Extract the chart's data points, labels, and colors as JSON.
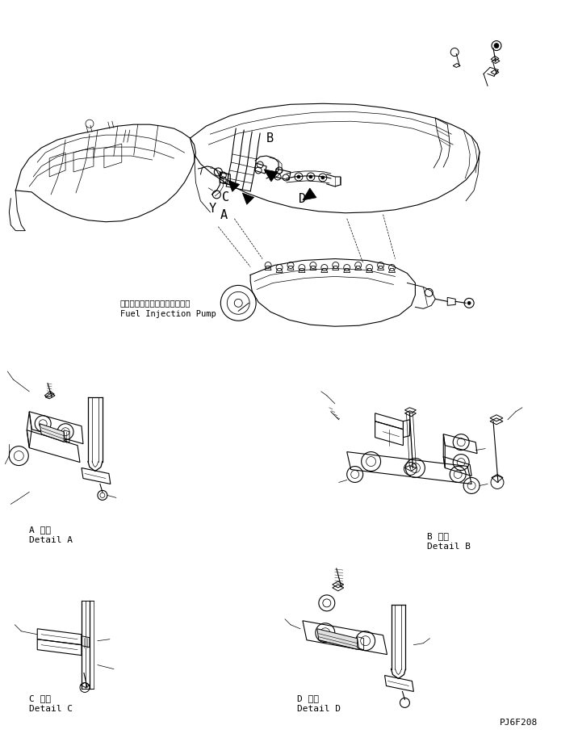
{
  "background_color": "#ffffff",
  "line_color": "#000000",
  "figure_width": 7.16,
  "figure_height": 9.19,
  "dpi": 100,
  "labels": {
    "fuel_injection_jp": "フェルインジェクションポンプ",
    "fuel_injection_en": "Fuel Injection Pump",
    "detail_a_jp": "A 詳細",
    "detail_a_en": "Detail A",
    "detail_b_jp": "B 詳細",
    "detail_b_en": "Detail B",
    "detail_c_jp": "C 詳細",
    "detail_c_en": "Detail C",
    "detail_d_jp": "D 詳細",
    "detail_d_en": "Detail D",
    "part_number": "PJ6F208",
    "label_A": "A",
    "label_B": "B",
    "label_C": "C",
    "label_D": "D",
    "label_Y": "Y"
  }
}
